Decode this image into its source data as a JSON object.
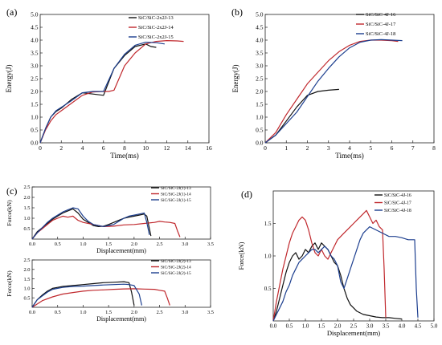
{
  "colors": {
    "black": "#111111",
    "red": "#c0282d",
    "blue": "#1d3f8f",
    "frame": "#222222"
  },
  "chart_data": [
    {
      "id": "a",
      "panel_label": "(a)",
      "type": "line",
      "xlabel": "Time(ms)",
      "ylabel": "Energy(J)",
      "xlim": [
        0,
        16
      ],
      "ylim": [
        0,
        5
      ],
      "xticks": [
        0,
        2,
        4,
        6,
        8,
        10,
        12,
        14,
        16
      ],
      "yticks": [
        0.0,
        0.5,
        1.0,
        1.5,
        2.0,
        2.5,
        3.0,
        3.5,
        4.0,
        4.5,
        5.0
      ],
      "ytick_decimals": 1,
      "legend_position": "top-right",
      "series": [
        {
          "name": "SiC/SiC-2x2J-13",
          "color": "black",
          "x": [
            0,
            0.5,
            1,
            1.5,
            2,
            3,
            4,
            5,
            6,
            7,
            8,
            9,
            10,
            10.5,
            11
          ],
          "y": [
            0,
            0.55,
            1.0,
            1.22,
            1.35,
            1.7,
            1.95,
            1.9,
            1.85,
            2.9,
            3.4,
            3.75,
            3.85,
            3.75,
            3.72
          ]
        },
        {
          "name": "SiC/SiC-2x2J-14",
          "color": "red",
          "x": [
            0,
            0.5,
            1,
            1.5,
            2,
            3,
            4,
            5,
            6,
            6.5,
            7,
            8,
            9,
            10,
            11,
            12,
            13,
            13.6
          ],
          "y": [
            0,
            0.5,
            0.85,
            1.1,
            1.25,
            1.55,
            1.85,
            1.98,
            2.0,
            2.0,
            2.05,
            3.0,
            3.5,
            3.85,
            3.95,
            3.98,
            3.97,
            3.95
          ]
        },
        {
          "name": "SiC/SiC-2x2J-15",
          "color": "blue",
          "x": [
            0,
            0.5,
            1,
            1.5,
            2,
            3,
            4,
            5,
            6,
            7,
            8,
            9,
            10,
            11,
            11.8
          ],
          "y": [
            0,
            0.55,
            1.0,
            1.25,
            1.38,
            1.65,
            1.95,
            2.0,
            2.0,
            2.9,
            3.45,
            3.8,
            3.92,
            3.9,
            3.85
          ]
        }
      ]
    },
    {
      "id": "b",
      "panel_label": "(b)",
      "type": "line",
      "xlabel": "Time(ms)",
      "ylabel": "Energy(J)",
      "xlim": [
        0,
        8
      ],
      "ylim": [
        0,
        5
      ],
      "xticks": [
        0,
        1,
        2,
        3,
        4,
        5,
        6,
        7,
        8
      ],
      "yticks": [
        0.0,
        0.5,
        1.0,
        1.5,
        2.0,
        2.5,
        3.0,
        3.5,
        4.0,
        4.5,
        5.0
      ],
      "ytick_decimals": 1,
      "legend_position": "top-right",
      "series": [
        {
          "name": "SiC/SiC-4J-16",
          "color": "black",
          "x": [
            0,
            0.5,
            1,
            1.5,
            2,
            2.5,
            3,
            3.5
          ],
          "y": [
            0,
            0.3,
            0.85,
            1.4,
            1.85,
            2.0,
            2.05,
            2.08
          ]
        },
        {
          "name": "SiC/SiC-4J-17",
          "color": "red",
          "x": [
            0,
            0.5,
            1,
            1.5,
            2,
            2.5,
            3,
            3.5,
            4,
            4.5,
            5,
            5.5,
            6,
            6.3
          ],
          "y": [
            0,
            0.4,
            1.1,
            1.7,
            2.3,
            2.75,
            3.2,
            3.55,
            3.8,
            3.95,
            4.0,
            4.0,
            3.98,
            3.95
          ]
        },
        {
          "name": "SiC/SiC-4J-18",
          "color": "blue",
          "x": [
            0,
            0.5,
            1,
            1.5,
            2,
            2.5,
            3,
            3.5,
            4,
            4.5,
            5,
            5.5,
            6,
            6.5
          ],
          "y": [
            0,
            0.3,
            0.75,
            1.2,
            1.8,
            2.4,
            2.9,
            3.35,
            3.7,
            3.92,
            4.0,
            4.02,
            4.0,
            3.98
          ]
        }
      ]
    },
    {
      "id": "c1",
      "panel_label": "(c)",
      "type": "line",
      "xlabel": "Displacement(mm)",
      "ylabel": "Force(kN)",
      "xlim": [
        0,
        3.5
      ],
      "ylim": [
        0,
        2.5
      ],
      "xticks": [
        0.0,
        0.5,
        1.0,
        1.5,
        2.0,
        2.5,
        3.0,
        3.5
      ],
      "yticks": [
        0.5,
        1.0,
        1.5,
        2.0,
        2.5
      ],
      "ytick_decimals": 1,
      "legend_position": "top-right",
      "series": [
        {
          "name": "SiC/SiC-2J(1)-13",
          "color": "black",
          "x": [
            0,
            0.1,
            0.2,
            0.3,
            0.4,
            0.5,
            0.6,
            0.7,
            0.8,
            0.9,
            1.0,
            1.1,
            1.2,
            1.3,
            1.4,
            1.5,
            1.6,
            1.7,
            1.8,
            1.9,
            2.0,
            2.1,
            2.2,
            2.25,
            2.3,
            2.33
          ],
          "y": [
            0,
            0.35,
            0.55,
            0.75,
            0.95,
            1.1,
            1.25,
            1.35,
            1.45,
            1.25,
            0.95,
            0.8,
            0.65,
            0.6,
            0.62,
            0.7,
            0.8,
            0.9,
            1.0,
            1.05,
            1.1,
            1.15,
            1.2,
            1.1,
            0.5,
            0.15
          ]
        },
        {
          "name": "SiC/SiC-2J(1)-14",
          "color": "red",
          "x": [
            0,
            0.1,
            0.2,
            0.3,
            0.4,
            0.5,
            0.6,
            0.7,
            0.8,
            0.9,
            1.0,
            1.2,
            1.4,
            1.6,
            1.8,
            2.0,
            2.2,
            2.4,
            2.5,
            2.6,
            2.7,
            2.8,
            2.85,
            2.9
          ],
          "y": [
            0,
            0.3,
            0.5,
            0.7,
            0.9,
            1.0,
            1.1,
            1.05,
            1.1,
            0.9,
            0.8,
            0.7,
            0.6,
            0.62,
            0.68,
            0.7,
            0.75,
            0.8,
            0.85,
            0.82,
            0.8,
            0.75,
            0.4,
            0.1
          ]
        },
        {
          "name": "SiC/SiC-2J(1)-15",
          "color": "blue",
          "x": [
            0,
            0.1,
            0.2,
            0.3,
            0.4,
            0.5,
            0.6,
            0.7,
            0.8,
            0.9,
            1.0,
            1.1,
            1.2,
            1.3,
            1.4,
            1.5,
            1.6,
            1.7,
            1.8,
            1.9,
            2.0,
            2.1,
            2.2,
            2.25,
            2.3
          ],
          "y": [
            0,
            0.3,
            0.55,
            0.8,
            1.0,
            1.15,
            1.3,
            1.4,
            1.5,
            1.45,
            1.1,
            0.85,
            0.7,
            0.65,
            0.6,
            0.65,
            0.7,
            0.85,
            1.0,
            1.1,
            1.15,
            1.2,
            1.25,
            0.8,
            0.2
          ]
        }
      ]
    },
    {
      "id": "c2",
      "panel_label": "",
      "type": "line",
      "xlabel": "Displacement(mm)",
      "ylabel": "Force(kN)",
      "xlim": [
        0,
        3.5
      ],
      "ylim": [
        0,
        2.5
      ],
      "xticks": [
        0.0,
        0.5,
        1.0,
        1.5,
        2.0,
        2.5,
        3.0,
        3.5
      ],
      "yticks": [
        0.5,
        1.0,
        1.5,
        2.0,
        2.5
      ],
      "ytick_decimals": 1,
      "legend_position": "top-right",
      "series": [
        {
          "name": "SiC/SiC-2J(2)-13",
          "color": "black",
          "x": [
            0,
            0.1,
            0.2,
            0.3,
            0.4,
            0.5,
            0.6,
            0.8,
            1.0,
            1.2,
            1.4,
            1.6,
            1.8,
            1.9,
            1.95,
            2.0
          ],
          "y": [
            0,
            0.4,
            0.65,
            0.85,
            1.0,
            1.05,
            1.1,
            1.15,
            1.2,
            1.25,
            1.3,
            1.32,
            1.35,
            1.3,
            0.8,
            0.1
          ]
        },
        {
          "name": "SiC/SiC-2J(2)-14",
          "color": "red",
          "x": [
            0,
            0.2,
            0.4,
            0.6,
            0.8,
            1.0,
            1.2,
            1.4,
            1.6,
            1.8,
            2.0,
            2.2,
            2.4,
            2.5,
            2.6,
            2.65,
            2.7
          ],
          "y": [
            0,
            0.35,
            0.55,
            0.7,
            0.78,
            0.85,
            0.9,
            0.92,
            0.95,
            0.97,
            0.98,
            0.96,
            0.95,
            0.9,
            0.85,
            0.5,
            0.1
          ]
        },
        {
          "name": "SiC/SiC-2J(2)-15",
          "color": "blue",
          "x": [
            0,
            0.1,
            0.2,
            0.3,
            0.4,
            0.5,
            0.6,
            0.8,
            1.0,
            1.2,
            1.4,
            1.6,
            1.8,
            1.9,
            2.0,
            2.1,
            2.15
          ],
          "y": [
            0,
            0.4,
            0.6,
            0.8,
            0.95,
            1.0,
            1.05,
            1.1,
            1.12,
            1.15,
            1.18,
            1.2,
            1.22,
            1.2,
            1.15,
            0.7,
            0.1
          ]
        }
      ]
    },
    {
      "id": "d",
      "panel_label": "(d)",
      "type": "line",
      "xlabel": "Displacement(mm)",
      "ylabel": "Force(kN)",
      "xlim": [
        0,
        5
      ],
      "ylim": [
        0,
        2
      ],
      "xticks": [
        0.0,
        0.5,
        1.0,
        1.5,
        2.0,
        2.5,
        3.0,
        3.5,
        4.0,
        4.5,
        5.0
      ],
      "yticks": [
        0.5,
        1.0,
        1.5
      ],
      "ytick_decimals": 1,
      "legend_position": "top-right",
      "series": [
        {
          "name": "SiC/SiC-4J-16",
          "color": "black",
          "x": [
            0,
            0.1,
            0.2,
            0.3,
            0.4,
            0.5,
            0.6,
            0.7,
            0.8,
            0.9,
            1.0,
            1.1,
            1.2,
            1.3,
            1.4,
            1.5,
            1.6,
            1.7,
            1.8,
            1.9,
            2.0,
            2.1,
            2.2,
            2.3,
            2.4,
            2.5,
            2.6,
            2.8,
            3.0,
            3.2,
            3.4,
            3.6,
            3.8,
            4.0
          ],
          "y": [
            0,
            0.15,
            0.35,
            0.55,
            0.75,
            0.9,
            1.0,
            1.05,
            0.95,
            1.0,
            1.1,
            1.05,
            1.15,
            1.2,
            1.1,
            1.2,
            1.15,
            1.1,
            1.0,
            0.9,
            0.85,
            0.7,
            0.5,
            0.35,
            0.25,
            0.2,
            0.15,
            0.1,
            0.08,
            0.06,
            0.05,
            0.05,
            0.04,
            0.03
          ]
        },
        {
          "name": "SiC/SiC-4J-17",
          "color": "red",
          "x": [
            0,
            0.1,
            0.2,
            0.3,
            0.4,
            0.5,
            0.6,
            0.7,
            0.8,
            0.9,
            1.0,
            1.1,
            1.2,
            1.3,
            1.4,
            1.5,
            1.6,
            1.7,
            1.8,
            1.9,
            2.0,
            2.1,
            2.2,
            2.3,
            2.4,
            2.5,
            2.6,
            2.7,
            2.8,
            2.9,
            3.0,
            3.1,
            3.2,
            3.3,
            3.4,
            3.45,
            3.5
          ],
          "y": [
            0,
            0.3,
            0.55,
            0.8,
            1.0,
            1.2,
            1.35,
            1.45,
            1.55,
            1.6,
            1.55,
            1.4,
            1.2,
            1.05,
            1.0,
            1.1,
            1.0,
            0.95,
            1.05,
            1.15,
            1.25,
            1.3,
            1.35,
            1.4,
            1.45,
            1.5,
            1.55,
            1.6,
            1.65,
            1.7,
            1.6,
            1.5,
            1.55,
            1.45,
            1.4,
            0.8,
            0.05
          ]
        },
        {
          "name": "SiC/SiC-4J-18",
          "color": "blue",
          "x": [
            0,
            0.1,
            0.2,
            0.3,
            0.4,
            0.5,
            0.6,
            0.7,
            0.8,
            0.9,
            1.0,
            1.1,
            1.2,
            1.3,
            1.4,
            1.5,
            1.6,
            1.7,
            1.8,
            1.9,
            2.0,
            2.1,
            2.2,
            2.3,
            2.4,
            2.5,
            2.6,
            2.7,
            2.8,
            2.9,
            3.0,
            3.2,
            3.4,
            3.6,
            3.8,
            4.0,
            4.2,
            4.4,
            4.45,
            4.5
          ],
          "y": [
            0,
            0.1,
            0.2,
            0.3,
            0.45,
            0.55,
            0.7,
            0.8,
            0.9,
            0.95,
            1.0,
            1.05,
            1.1,
            1.1,
            1.05,
            1.1,
            1.15,
            1.1,
            1.0,
            0.95,
            0.85,
            0.6,
            0.5,
            0.65,
            0.8,
            0.95,
            1.1,
            1.25,
            1.35,
            1.4,
            1.45,
            1.4,
            1.35,
            1.3,
            1.3,
            1.28,
            1.25,
            1.25,
            0.5,
            0.05
          ]
        }
      ]
    }
  ]
}
